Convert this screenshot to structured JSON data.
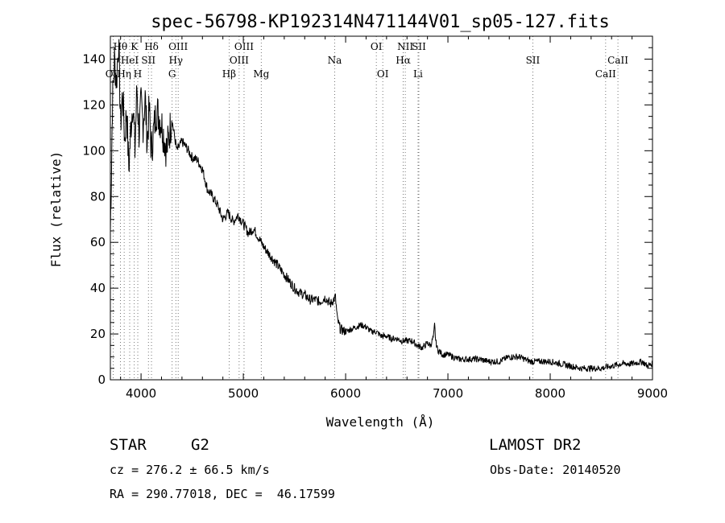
{
  "chart_data": {
    "type": "line",
    "title": "spec-56798-KP192314N471144V01_sp05-127.fits",
    "xlabel": "Wavelength (Å)",
    "ylabel": "Flux (relative)",
    "xlim": [
      3700,
      9000
    ],
    "ylim": [
      0,
      150
    ],
    "x_ticks": [
      4000,
      5000,
      6000,
      7000,
      8000,
      9000
    ],
    "y_ticks": [
      0,
      20,
      40,
      60,
      80,
      100,
      120,
      140
    ],
    "grid": false,
    "series": [
      {
        "x": [
          3700,
          3710,
          3720,
          3740,
          3760,
          3780,
          3800,
          3820,
          3840,
          3860,
          3880,
          3900,
          3920,
          3940,
          3960,
          3980,
          4000,
          4020,
          4040,
          4060,
          4080,
          4100,
          4150,
          4200,
          4250,
          4300,
          4350,
          4400,
          4450,
          4500,
          4550,
          4600,
          4650,
          4700,
          4750,
          4800,
          4850,
          4900,
          4950,
          5000,
          5050,
          5100,
          5150,
          5200,
          5250,
          5300,
          5350,
          5400,
          5450,
          5500,
          5550,
          5600,
          5650,
          5700,
          5750,
          5800,
          5850,
          5900,
          5920,
          5950,
          6000,
          6050,
          6100,
          6150,
          6200,
          6250,
          6300,
          6350,
          6400,
          6450,
          6500,
          6550,
          6600,
          6650,
          6700,
          6750,
          6800,
          6830,
          6860,
          6870,
          6880,
          6900,
          6950,
          7000,
          7100,
          7200,
          7300,
          7400,
          7500,
          7600,
          7700,
          7800,
          7900,
          8000,
          8100,
          8200,
          8300,
          8400,
          8500,
          8600,
          8700,
          8800,
          8900,
          8950,
          9000
        ],
        "values": [
          65,
          90,
          120,
          140,
          130,
          148,
          112,
          125,
          105,
          118,
          92,
          110,
          122,
          100,
          128,
          108,
          120,
          112,
          123,
          104,
          118,
          100,
          118,
          112,
          100,
          114,
          100,
          104,
          101,
          97,
          96,
          92,
          83,
          80,
          76,
          70,
          73,
          69,
          72,
          68,
          64,
          66,
          62,
          58,
          55,
          52,
          49,
          46,
          43,
          40,
          38,
          37,
          35,
          35,
          34,
          36,
          33,
          36,
          26,
          22,
          21,
          22,
          23,
          24,
          23,
          21,
          21,
          19,
          19,
          18,
          18,
          17,
          17,
          17,
          15,
          14,
          16,
          15,
          19,
          24,
          17,
          13,
          11,
          11,
          9,
          9,
          9,
          8,
          8,
          10,
          10,
          8,
          8,
          8,
          7,
          6,
          5,
          5,
          5,
          6,
          7,
          7,
          8,
          6,
          7
        ]
      }
    ],
    "spectral_lines": [
      {
        "label": "OII",
        "wavelength": 3727,
        "row": 2
      },
      {
        "label": "Hθ",
        "wavelength": 3798,
        "row": 0
      },
      {
        "label": "Hη",
        "wavelength": 3835,
        "row": 2
      },
      {
        "label": "HeI",
        "wavelength": 3889,
        "row": 1
      },
      {
        "label": "K",
        "wavelength": 3934,
        "row": 0
      },
      {
        "label": "H",
        "wavelength": 3968,
        "row": 2
      },
      {
        "label": "SII",
        "wavelength": 4072,
        "row": 1
      },
      {
        "label": "Hδ",
        "wavelength": 4102,
        "row": 0
      },
      {
        "label": "OIII",
        "wavelength": 4363,
        "row": 0
      },
      {
        "label": "Hγ",
        "wavelength": 4340,
        "row": 1
      },
      {
        "label": "G",
        "wavelength": 4304,
        "row": 2
      },
      {
        "label": "Hβ",
        "wavelength": 4861,
        "row": 2
      },
      {
        "label": "OIII",
        "wavelength": 4959,
        "row": 1
      },
      {
        "label": "OIII",
        "wavelength": 5007,
        "row": 0
      },
      {
        "label": "Mg",
        "wavelength": 5175,
        "row": 2
      },
      {
        "label": "Na",
        "wavelength": 5893,
        "row": 1
      },
      {
        "label": "OI",
        "wavelength": 6300,
        "row": 0
      },
      {
        "label": "OI",
        "wavelength": 6363,
        "row": 2
      },
      {
        "label": "NII",
        "wavelength": 6583,
        "row": 0
      },
      {
        "label": "Hα",
        "wavelength": 6563,
        "row": 1
      },
      {
        "label": "SII",
        "wavelength": 6716,
        "row": 0
      },
      {
        "label": "Li",
        "wavelength": 6708,
        "row": 2
      },
      {
        "label": "SII",
        "wavelength": 7830,
        "row": 1
      },
      {
        "label": "CaII",
        "wavelength": 8542,
        "row": 2
      },
      {
        "label": "CaII",
        "wavelength": 8662,
        "row": 1
      }
    ]
  },
  "info": {
    "class": "STAR",
    "subclass": "G2",
    "survey": "LAMOST DR2",
    "cz": "cz = 276.2 ± 66.5 km/s",
    "obs_date": "Obs-Date: 20140520",
    "coords": "RA = 290.77018, DEC =  46.17599"
  }
}
